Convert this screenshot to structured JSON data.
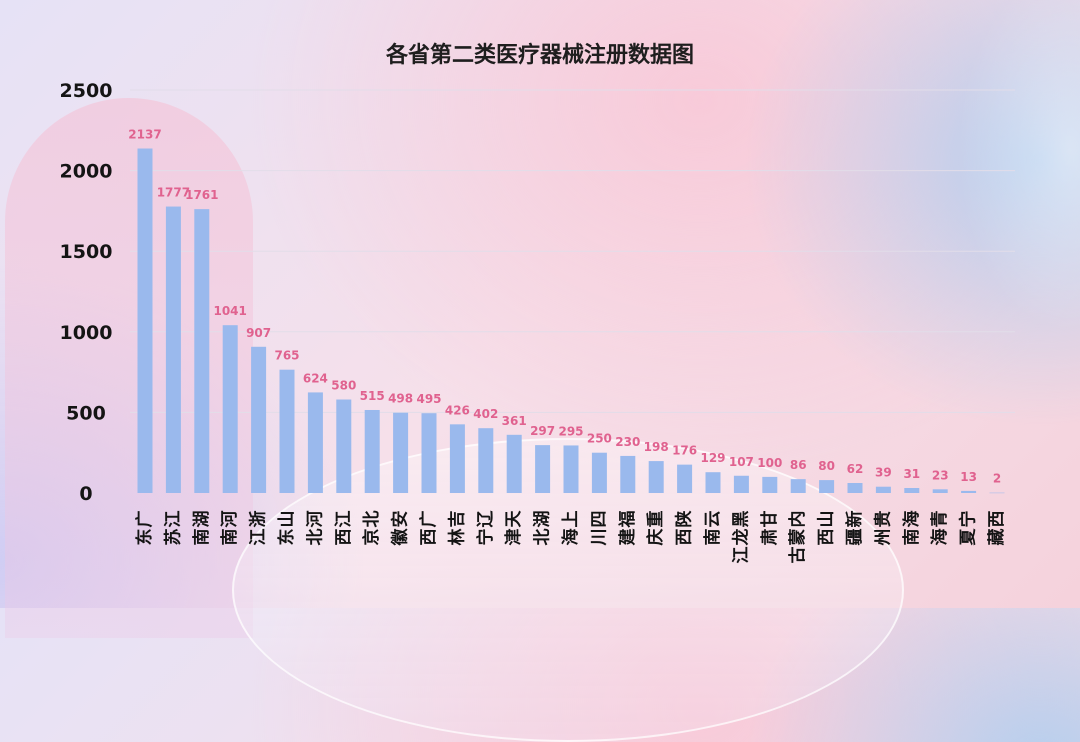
{
  "chart_data": {
    "type": "bar",
    "title": "各省第二类医疗器械注册数据图",
    "xlabel": "",
    "ylabel": "",
    "ylim": [
      0,
      2500
    ],
    "yticks": [
      0,
      500,
      1000,
      1500,
      2000,
      2500
    ],
    "grid": true,
    "categories": [
      "广东",
      "江苏",
      "湖南",
      "河南",
      "浙江",
      "山东",
      "河北",
      "江西",
      "北京",
      "安徽",
      "广西",
      "吉林",
      "辽宁",
      "天津",
      "湖北",
      "上海",
      "四川",
      "福建",
      "重庆",
      "陕西",
      "云南",
      "黑龙江",
      "甘肃",
      "内蒙古",
      "山西",
      "新疆",
      "贵州",
      "海南",
      "青海",
      "宁夏",
      "西藏"
    ],
    "values": [
      2137,
      1777,
      1761,
      1041,
      907,
      765,
      624,
      580,
      515,
      498,
      495,
      426,
      402,
      361,
      297,
      295,
      250,
      230,
      198,
      176,
      129,
      107,
      100,
      86,
      80,
      62,
      39,
      31,
      23,
      13,
      2
    ],
    "colors": {
      "bar": "#9ab9ed",
      "data_label": "#e0628f",
      "grid": "#e2dde9",
      "text": "#141414"
    }
  }
}
